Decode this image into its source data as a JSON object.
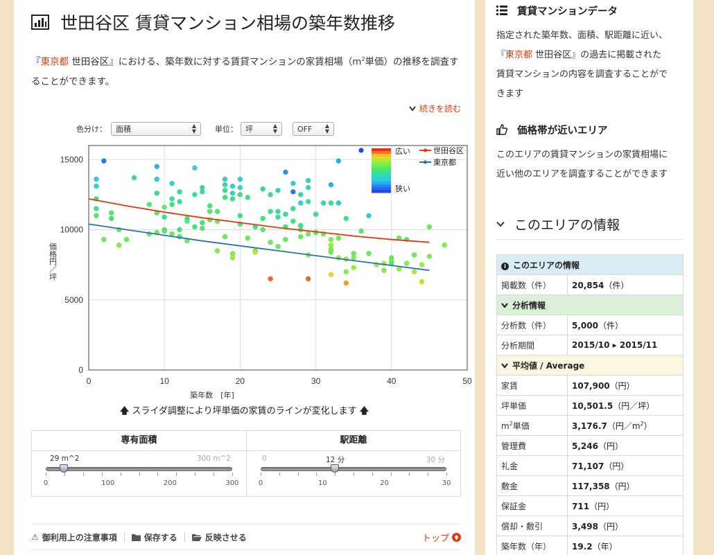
{
  "page": {
    "title": "世田谷区 賃貸マンション相場の築年数推移",
    "intro_pre": "『",
    "intro_pref": "東京都",
    "intro_mid": " 世田谷区』における、築年数に対する賃貸マンションの家賃相場（m",
    "intro_sup": "2",
    "intro_post": "単価）の推移を調査することができます。",
    "readmore": "続きを読む"
  },
  "controls": {
    "color_label": "色分け：",
    "color_value": "面積",
    "unit_label": "単位：",
    "unit_value": "坪",
    "toggle_value": "OFF"
  },
  "chart_data": {
    "type": "scatter",
    "xlabel": "築年数　[年]",
    "ylabel": "価格円／坪",
    "xlim": [
      0,
      50
    ],
    "ylim": [
      0,
      16000
    ],
    "xticks": [
      "0",
      "10",
      "20",
      "30",
      "40",
      "50"
    ],
    "yticks": [
      "0",
      "5000",
      "10000",
      "15000"
    ],
    "grid": true,
    "legend_position": "top-right",
    "color_scale": {
      "label_high": "広い",
      "label_low": "狭い"
    },
    "lines": [
      {
        "name": "世田谷区",
        "color": "#e2380b",
        "x": [
          0,
          5,
          10,
          15,
          20,
          25,
          30,
          35,
          40,
          45
        ],
        "y": [
          12200,
          11700,
          11250,
          10850,
          10500,
          10150,
          9850,
          9550,
          9300,
          9100
        ]
      },
      {
        "name": "東京都",
        "color": "#2473b5",
        "x": [
          0,
          5,
          10,
          15,
          20,
          25,
          30,
          35,
          40,
          45
        ],
        "y": [
          10400,
          10000,
          9600,
          9200,
          8850,
          8500,
          8150,
          7800,
          7450,
          7100
        ]
      }
    ],
    "points": [
      {
        "x": 1,
        "y": 13600,
        "c": 0.25
      },
      {
        "x": 1,
        "y": 13100,
        "c": 0.35
      },
      {
        "x": 1,
        "y": 12200,
        "c": 0.5
      },
      {
        "x": 1,
        "y": 11500,
        "c": 0.45
      },
      {
        "x": 1,
        "y": 11000,
        "c": 0.55
      },
      {
        "x": 2,
        "y": 14900,
        "c": 0.1
      },
      {
        "x": 2,
        "y": 9300,
        "c": 0.6
      },
      {
        "x": 3,
        "y": 11200,
        "c": 0.55
      },
      {
        "x": 3,
        "y": 10800,
        "c": 0.5
      },
      {
        "x": 4,
        "y": 10000,
        "c": 0.6
      },
      {
        "x": 4,
        "y": 8900,
        "c": 0.65
      },
      {
        "x": 5,
        "y": 9300,
        "c": 0.6
      },
      {
        "x": 6,
        "y": 13700,
        "c": 0.45
      },
      {
        "x": 8,
        "y": 9700,
        "c": 0.6
      },
      {
        "x": 8,
        "y": 11800,
        "c": 0.55
      },
      {
        "x": 9,
        "y": 14500,
        "c": 0.2
      },
      {
        "x": 9,
        "y": 13600,
        "c": 0.3
      },
      {
        "x": 9,
        "y": 12600,
        "c": 0.4
      },
      {
        "x": 9,
        "y": 11200,
        "c": 0.55
      },
      {
        "x": 9,
        "y": 9800,
        "c": 0.6
      },
      {
        "x": 10,
        "y": 11600,
        "c": 0.6
      },
      {
        "x": 10,
        "y": 10000,
        "c": 0.55
      },
      {
        "x": 10,
        "y": 10900,
        "c": 0.45
      },
      {
        "x": 11,
        "y": 13300,
        "c": 0.35
      },
      {
        "x": 11,
        "y": 12200,
        "c": 0.45
      },
      {
        "x": 11,
        "y": 11800,
        "c": 0.5
      },
      {
        "x": 11,
        "y": 9700,
        "c": 0.6
      },
      {
        "x": 12,
        "y": 12700,
        "c": 0.4
      },
      {
        "x": 12,
        "y": 12000,
        "c": 0.45
      },
      {
        "x": 12,
        "y": 9500,
        "c": 0.55
      },
      {
        "x": 13,
        "y": 10800,
        "c": 0.5
      },
      {
        "x": 13,
        "y": 10600,
        "c": 0.55
      },
      {
        "x": 13,
        "y": 9200,
        "c": 0.6
      },
      {
        "x": 14,
        "y": 14400,
        "c": 0.35
      },
      {
        "x": 14,
        "y": 12500,
        "c": 0.45
      },
      {
        "x": 14,
        "y": 10200,
        "c": 0.5
      },
      {
        "x": 15,
        "y": 13000,
        "c": 0.4
      },
      {
        "x": 15,
        "y": 12700,
        "c": 0.45
      },
      {
        "x": 15,
        "y": 10100,
        "c": 0.55
      },
      {
        "x": 16,
        "y": 11700,
        "c": 0.5
      },
      {
        "x": 16,
        "y": 11300,
        "c": 0.55
      },
      {
        "x": 16,
        "y": 10700,
        "c": 0.6
      },
      {
        "x": 17,
        "y": 11300,
        "c": 0.55
      },
      {
        "x": 17,
        "y": 10600,
        "c": 0.6
      },
      {
        "x": 17,
        "y": 8500,
        "c": 0.65
      },
      {
        "x": 18,
        "y": 13600,
        "c": 0.35
      },
      {
        "x": 18,
        "y": 13200,
        "c": 0.4
      },
      {
        "x": 18,
        "y": 12800,
        "c": 0.45
      },
      {
        "x": 18,
        "y": 12300,
        "c": 0.5
      },
      {
        "x": 18,
        "y": 9500,
        "c": 0.6
      },
      {
        "x": 19,
        "y": 13100,
        "c": 0.35
      },
      {
        "x": 19,
        "y": 12600,
        "c": 0.4
      },
      {
        "x": 19,
        "y": 12200,
        "c": 0.45
      },
      {
        "x": 19,
        "y": 8300,
        "c": 0.65
      },
      {
        "x": 19,
        "y": 8000,
        "c": 0.7
      },
      {
        "x": 20,
        "y": 13600,
        "c": 0.3
      },
      {
        "x": 20,
        "y": 13000,
        "c": 0.4
      },
      {
        "x": 20,
        "y": 12500,
        "c": 0.45
      },
      {
        "x": 20,
        "y": 11000,
        "c": 0.5
      },
      {
        "x": 20,
        "y": 10400,
        "c": 0.55
      },
      {
        "x": 21,
        "y": 12300,
        "c": 0.45
      },
      {
        "x": 21,
        "y": 9400,
        "c": 0.6
      },
      {
        "x": 22,
        "y": 10200,
        "c": 0.5
      },
      {
        "x": 22,
        "y": 8500,
        "c": 0.65
      },
      {
        "x": 22,
        "y": 8400,
        "c": 0.75
      },
      {
        "x": 23,
        "y": 12900,
        "c": 0.4
      },
      {
        "x": 23,
        "y": 10800,
        "c": 0.5
      },
      {
        "x": 23,
        "y": 10000,
        "c": 0.55
      },
      {
        "x": 24,
        "y": 12500,
        "c": 0.45
      },
      {
        "x": 24,
        "y": 11300,
        "c": 0.5
      },
      {
        "x": 24,
        "y": 9100,
        "c": 0.6
      },
      {
        "x": 24,
        "y": 6500,
        "c": 0.95
      },
      {
        "x": 25,
        "y": 12800,
        "c": 0.35
      },
      {
        "x": 25,
        "y": 11300,
        "c": 0.4
      },
      {
        "x": 25,
        "y": 10900,
        "c": 0.45
      },
      {
        "x": 25,
        "y": 8800,
        "c": 0.6
      },
      {
        "x": 26,
        "y": 14100,
        "c": 0.15
      },
      {
        "x": 26,
        "y": 11100,
        "c": 0.4
      },
      {
        "x": 26,
        "y": 10200,
        "c": 0.5
      },
      {
        "x": 27,
        "y": 12700,
        "c": 0.1
      },
      {
        "x": 27,
        "y": 13300,
        "c": 0.35
      },
      {
        "x": 27,
        "y": 11500,
        "c": 0.45
      },
      {
        "x": 27,
        "y": 10600,
        "c": 0.5
      },
      {
        "x": 28,
        "y": 12500,
        "c": 0.35
      },
      {
        "x": 28,
        "y": 11900,
        "c": 0.3
      },
      {
        "x": 28,
        "y": 10300,
        "c": 0.45
      },
      {
        "x": 28,
        "y": 10000,
        "c": 0.55
      },
      {
        "x": 28,
        "y": 9500,
        "c": 0.6
      },
      {
        "x": 29,
        "y": 13500,
        "c": 0.35
      },
      {
        "x": 29,
        "y": 13000,
        "c": 0.4
      },
      {
        "x": 29,
        "y": 12000,
        "c": 0.45
      },
      {
        "x": 29,
        "y": 9700,
        "c": 0.6
      },
      {
        "x": 29,
        "y": 8200,
        "c": 0.65
      },
      {
        "x": 29,
        "y": 6500,
        "c": 0.95
      },
      {
        "x": 30,
        "y": 11100,
        "c": 0.45
      },
      {
        "x": 30,
        "y": 9800,
        "c": 0.55
      },
      {
        "x": 31,
        "y": 11900,
        "c": 0.4
      },
      {
        "x": 31,
        "y": 9700,
        "c": 0.6
      },
      {
        "x": 32,
        "y": 13200,
        "c": 0.2
      },
      {
        "x": 32,
        "y": 11900,
        "c": 0.45
      },
      {
        "x": 32,
        "y": 9300,
        "c": 0.65
      },
      {
        "x": 32,
        "y": 8900,
        "c": 0.7
      },
      {
        "x": 32,
        "y": 8600,
        "c": 0.65
      },
      {
        "x": 32,
        "y": 8400,
        "c": 0.6
      },
      {
        "x": 32,
        "y": 6800,
        "c": 0.85
      },
      {
        "x": 33,
        "y": 14900,
        "c": 0.2
      },
      {
        "x": 33,
        "y": 11900,
        "c": 0.3
      },
      {
        "x": 33,
        "y": 8000,
        "c": 0.7
      },
      {
        "x": 33,
        "y": 9400,
        "c": 0.6
      },
      {
        "x": 34,
        "y": 10800,
        "c": 0.45
      },
      {
        "x": 34,
        "y": 7900,
        "c": 0.7
      },
      {
        "x": 34,
        "y": 6200,
        "c": 0.9
      },
      {
        "x": 34,
        "y": 7000,
        "c": 0.65
      },
      {
        "x": 35,
        "y": 8300,
        "c": 0.6
      },
      {
        "x": 35,
        "y": 7300,
        "c": 0.7
      },
      {
        "x": 35,
        "y": 8000,
        "c": 0.65
      },
      {
        "x": 36,
        "y": 9900,
        "c": 0.55
      },
      {
        "x": 37,
        "y": 11000,
        "c": 0.3
      },
      {
        "x": 37,
        "y": 8300,
        "c": 0.6
      },
      {
        "x": 38,
        "y": 7500,
        "c": 0.7
      },
      {
        "x": 39,
        "y": 7600,
        "c": 0.7
      },
      {
        "x": 39,
        "y": 7100,
        "c": 0.65
      },
      {
        "x": 40,
        "y": 8000,
        "c": 0.6
      },
      {
        "x": 40,
        "y": 7800,
        "c": 0.65
      },
      {
        "x": 40,
        "y": 7600,
        "c": 0.55
      },
      {
        "x": 41,
        "y": 9400,
        "c": 0.6
      },
      {
        "x": 41,
        "y": 7200,
        "c": 0.7
      },
      {
        "x": 42,
        "y": 9300,
        "c": 0.55
      },
      {
        "x": 42,
        "y": 7600,
        "c": 0.65
      },
      {
        "x": 43,
        "y": 8200,
        "c": 0.6
      },
      {
        "x": 43,
        "y": 7000,
        "c": 0.75
      },
      {
        "x": 44,
        "y": 7500,
        "c": 0.7
      },
      {
        "x": 44,
        "y": 6300,
        "c": 0.8
      },
      {
        "x": 45,
        "y": 10200,
        "c": 0.6
      },
      {
        "x": 45,
        "y": 8100,
        "c": 0.65
      },
      {
        "x": 47,
        "y": 8900,
        "c": 0.65
      },
      {
        "x": 12,
        "y": 10000,
        "c": 0.5
      },
      {
        "x": 10,
        "y": 9900,
        "c": 0.55
      },
      {
        "x": 15,
        "y": 10500,
        "c": 0.5
      },
      {
        "x": 26,
        "y": 9300,
        "c": 0.6
      }
    ]
  },
  "note": "スライダ調整により坪単価の家賃のラインが変化します",
  "sliders": [
    {
      "title": "専有面積",
      "min_label": "",
      "max_label": "300 m^2",
      "value_label": "29 m^2",
      "fraction": 0.0967,
      "ticks": [
        "0",
        "100",
        "200",
        "300"
      ]
    },
    {
      "title": "駅距離",
      "min_label": "0",
      "max_label": "30 分",
      "value_label": "12 分",
      "fraction": 0.4,
      "ticks": [
        "0",
        "10",
        "20",
        "30"
      ]
    }
  ],
  "footer": {
    "caution": "御利用上の注意事項",
    "save": "保存する",
    "reflect": "反映させる",
    "top": "トップ"
  },
  "side": {
    "data_title": "賃貸マンションデータ",
    "data_text_1": "指定された築年数、面積、駅距離に近い、",
    "data_text_2a": "『",
    "data_text_2pref": "東京都",
    "data_text_2b": " 世田谷区』の過去に掲載された",
    "data_text_3": "賃貸マンションの内容を調査することがで",
    "data_text_4": "きます",
    "near_title": "価格帯が近いエリア",
    "near_text_1": "このエリアの賃貸マンションの家賃相場に",
    "near_text_2": "近い他のエリアを調査することができます",
    "area_title": "このエリアの情報",
    "table": {
      "sec_info": "このエリアの情報",
      "posted_k": "掲載数（件）",
      "posted_v": "20,854",
      "posted_u": "（件）",
      "sec_anal": "分析情報",
      "anal_k": "分析数（件）",
      "anal_v": "5,000",
      "anal_u": "（件）",
      "period_k": "分析期間",
      "period_v": "2015/10 ▸ 2015/11",
      "sec_avg": "平均値 / Average",
      "rent_k": "家賃",
      "rent_v": "107,900",
      "rent_u": "（円）",
      "tsubo_k": "坪単価",
      "tsubo_v": "10,501.5",
      "tsubo_u": "（円／坪）",
      "m2_k_pre": "m",
      "m2_k_sup": "2",
      "m2_k_post": "単価",
      "m2_v": "3,176.7",
      "m2_u_pre": "（円／m",
      "m2_u_sup": "2",
      "m2_u_post": "）",
      "mgmt_k": "管理費",
      "mgmt_v": "5,246",
      "mgmt_u": "（円）",
      "key_k": "礼金",
      "key_v": "71,107",
      "key_u": "（円）",
      "dep_k": "敷金",
      "dep_v": "117,358",
      "dep_u": "（円）",
      "guar_k": "保証金",
      "guar_v": "711",
      "guar_u": "（円）",
      "amort_k": "償却・敷引",
      "amort_v": "3,498",
      "amort_u": "（円）",
      "age_k": "築年数（年）",
      "age_v": "19.2",
      "age_u": "（年）"
    }
  }
}
